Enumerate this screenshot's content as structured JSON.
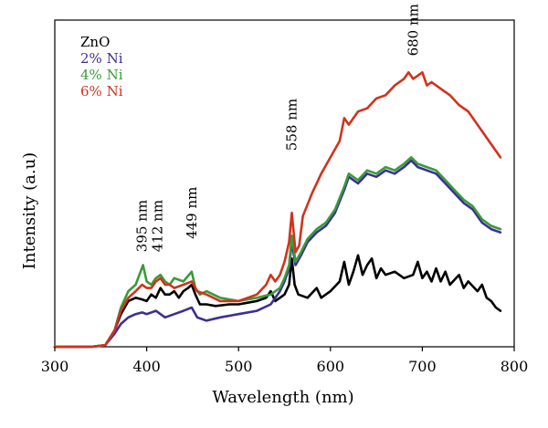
{
  "chart_data": {
    "type": "line",
    "title": "",
    "xlabel": "Wavelength (nm)",
    "ylabel": "Intensity (a.u)",
    "xlim": [
      300,
      800
    ],
    "ylim": [
      0,
      100
    ],
    "xticks": [
      300,
      400,
      500,
      600,
      700,
      800
    ],
    "x_tick_labels": [
      "300",
      "400",
      "500",
      "600",
      "700",
      "800"
    ],
    "y_ticks_shown": false,
    "grid": false,
    "legend_position": "top-left",
    "series": [
      {
        "name": "ZnO",
        "color": "#000000",
        "x": [
          300,
          340,
          355,
          365,
          372,
          380,
          388,
          395,
          400,
          405,
          410,
          415,
          420,
          425,
          430,
          435,
          440,
          445,
          449,
          453,
          458,
          465,
          475,
          490,
          500,
          510,
          520,
          530,
          535,
          540,
          545,
          550,
          555,
          558,
          561,
          565,
          575,
          585,
          590,
          600,
          610,
          615,
          620,
          625,
          630,
          635,
          640,
          645,
          650,
          655,
          660,
          670,
          680,
          690,
          695,
          700,
          705,
          710,
          715,
          720,
          725,
          730,
          740,
          745,
          750,
          760,
          765,
          770,
          775,
          780,
          785
        ],
        "y": [
          0,
          0,
          0.5,
          5,
          10,
          14,
          15,
          14.5,
          14,
          16,
          15,
          18,
          16,
          16,
          17,
          15,
          17,
          18,
          19,
          16,
          13,
          13,
          12.5,
          13,
          13,
          13.5,
          14,
          15,
          17,
          14,
          15,
          16,
          19,
          27,
          19,
          16,
          15,
          18,
          15,
          17,
          20,
          26,
          19,
          23,
          28,
          22,
          25,
          27,
          21,
          24,
          22,
          23,
          21,
          22,
          26,
          21,
          23,
          20,
          24,
          20,
          23,
          19,
          22,
          18,
          20,
          17,
          19,
          15,
          14,
          12,
          11
        ]
      },
      {
        "name": "2% Ni",
        "color": "#3b2f96",
        "x": [
          300,
          340,
          355,
          365,
          372,
          380,
          388,
          395,
          400,
          410,
          420,
          430,
          440,
          449,
          455,
          465,
          480,
          500,
          520,
          535,
          545,
          550,
          555,
          558,
          562,
          568,
          575,
          585,
          595,
          605,
          615,
          620,
          630,
          640,
          650,
          660,
          670,
          680,
          688,
          695,
          705,
          715,
          725,
          735,
          745,
          755,
          765,
          775,
          785
        ],
        "y": [
          0,
          0,
          0.5,
          4,
          7,
          9,
          10,
          10.5,
          10,
          11,
          9,
          10,
          11,
          12,
          9,
          8,
          9,
          10,
          11,
          13,
          17,
          20,
          24,
          32,
          25,
          28,
          32,
          35,
          37,
          41,
          48,
          52,
          50,
          53,
          52,
          54,
          53,
          55,
          57,
          55,
          54,
          53,
          50,
          47,
          44,
          42,
          38,
          36,
          35
        ]
      },
      {
        "name": "4% Ni",
        "color": "#3a9a3a",
        "x": [
          300,
          340,
          355,
          365,
          372,
          380,
          388,
          392,
          396,
          400,
          405,
          410,
          415,
          420,
          425,
          430,
          440,
          449,
          453,
          458,
          465,
          480,
          500,
          520,
          535,
          545,
          550,
          555,
          558,
          562,
          568,
          575,
          585,
          595,
          605,
          615,
          620,
          630,
          640,
          650,
          660,
          670,
          680,
          688,
          695,
          705,
          715,
          725,
          735,
          745,
          755,
          765,
          775,
          785
        ],
        "y": [
          0,
          0,
          0.5,
          5,
          12,
          17,
          19,
          22,
          25,
          20,
          19,
          21,
          22,
          20,
          19,
          21,
          20,
          23,
          18,
          16,
          17,
          15,
          14,
          15,
          16,
          18,
          21,
          25,
          34,
          26,
          29,
          33,
          36,
          38,
          42,
          49,
          53,
          51,
          54,
          53,
          55,
          54,
          56,
          58,
          56,
          55,
          54,
          51,
          48,
          45,
          43,
          39,
          37,
          36
        ]
      },
      {
        "name": "6% Ni",
        "color": "#d2321c",
        "x": [
          300,
          340,
          355,
          365,
          372,
          380,
          388,
          395,
          400,
          405,
          410,
          415,
          420,
          425,
          430,
          440,
          449,
          455,
          465,
          480,
          500,
          510,
          520,
          530,
          535,
          540,
          545,
          550,
          555,
          558,
          562,
          566,
          570,
          580,
          590,
          600,
          610,
          615,
          620,
          630,
          640,
          650,
          660,
          670,
          680,
          685,
          690,
          695,
          700,
          705,
          710,
          720,
          730,
          740,
          750,
          760,
          770,
          780,
          785
        ],
        "y": [
          0,
          0,
          0.5,
          5,
          11,
          15,
          17,
          19,
          18,
          18,
          20,
          21,
          19,
          19,
          18,
          19,
          20,
          17,
          16,
          14,
          14,
          15,
          16,
          19,
          22,
          20,
          22,
          26,
          32,
          41,
          29,
          31,
          40,
          47,
          53,
          58,
          63,
          70,
          68,
          72,
          73,
          76,
          77,
          80,
          82,
          84,
          82,
          83,
          84,
          80,
          81,
          79,
          77,
          74,
          72,
          68,
          64,
          60,
          58
        ]
      }
    ],
    "annotations": [
      {
        "text": "395 nm",
        "x": 395,
        "y": 29,
        "rotation": -90
      },
      {
        "text": "412 nm",
        "x": 412,
        "y": 29,
        "rotation": -90
      },
      {
        "text": "449 nm",
        "x": 449,
        "y": 33,
        "rotation": -90
      },
      {
        "text": "558 nm",
        "x": 558,
        "y": 60,
        "rotation": -90
      },
      {
        "text": "680 nm",
        "x": 690,
        "y": 89,
        "rotation": -90
      }
    ]
  }
}
